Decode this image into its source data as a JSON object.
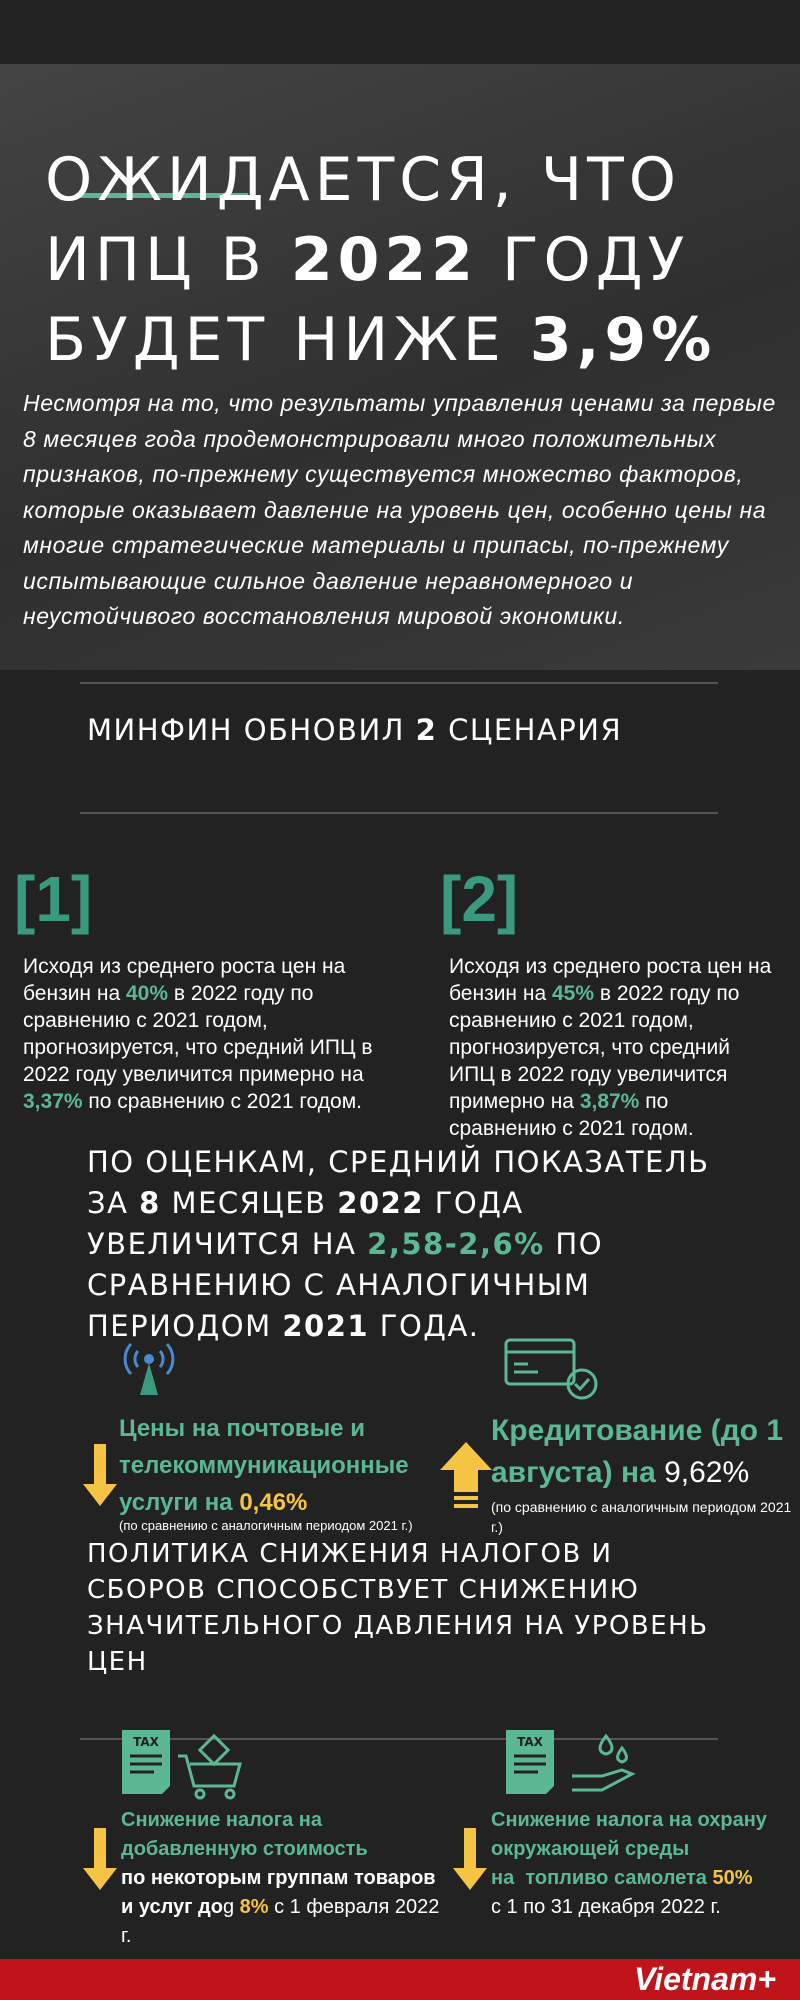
{
  "header": {
    "title": [
      "ОЖИДАЕТСЯ, ЧТО",
      "ИПЦ В ",
      "2022",
      " ГОДУ",
      "БУДЕТ НИЖЕ ",
      "3,9%"
    ],
    "intro": "Несмотря на то, что результаты управления ценами за первые 8 месяцев года продемонстрировали много положительных признаков, по-прежнему существуется множество факторов, которые оказывает давление на уровень цен, особенно цены на многие стратегические материалы и припасы, по-прежнему испытывающие сильное давление неравномерного и неустойчивого восстановления мировой экономики."
  },
  "scenarios_heading": [
    "МИНФИН ОБНОВИЛ ",
    "2",
    " СЦЕНАРИЯ"
  ],
  "scenarios": [
    {
      "number": "[1]",
      "text": [
        "Исходя из среднего роста цен на бензин на ",
        "40%",
        " в 2022 году по сравнению с 2021 годом, прогнозируется, что средний ИПЦ в 2022 году увеличится примерно на ",
        "3,37%",
        " по сравнению с 2021 годом."
      ]
    },
    {
      "number": "[2]",
      "text": [
        "Исходя из среднего роста цен на бензин на ",
        "45%",
        " в 2022 году по сравнению с 2021 годом, прогнозируется, что средний ИПЦ в 2022 году увеличится примерно на ",
        "3,87%",
        " по сравнению с 2021 годом."
      ]
    }
  ],
  "estimate": [
    "ПО ОЦЕНКАМ, СРЕДНИЙ ПОКАЗАТЕЛЬ ЗА ",
    "8",
    " МЕСЯЦЕВ ",
    "2022",
    " ГОДА УВЕЛИЧИТСЯ НА ",
    "2,58-2,6%",
    " ПО СРАВНЕНИЮ С АНАЛОГИЧНЫМ ПЕРИОДОМ ",
    "2021",
    " ГОДА."
  ],
  "indicators": [
    {
      "text": [
        "Цены на почтовые и телекоммуникационные услуги на ",
        "0,46%"
      ],
      "note": "(по сравнению с аналогичным периодом 2021 г.)"
    },
    {
      "text": [
        "Кредитование (до 1 августа) на ",
        "9,62%"
      ],
      "note": "(по сравнению с аналогичным периодом 2021 г.)"
    }
  ],
  "policy_heading": "ПОЛИТИКА СНИЖЕНИЯ НАЛОГОВ И СБОРОВ СПОСОБСТВУЕТ СНИЖЕНИЮ ЗНАЧИТЕЛЬНОГО ДАВЛЕНИЯ НА УРОВЕНЬ ЦЕН",
  "taxes": [
    {
      "text": [
        "Снижение налога на добавленную стоимость",
        "по некоторым группам товаров и услуг до",
        "g ",
        "8%",
        " с 1 февраля 2022 г."
      ]
    },
    {
      "text": [
        "Снижение налога на охрану окружающей среды",
        "на  топливо самолета ",
        "50%",
        "с 1 по 31 декабря 2022 г."
      ]
    }
  ],
  "footer": {
    "brand": "Vietnam+"
  }
}
